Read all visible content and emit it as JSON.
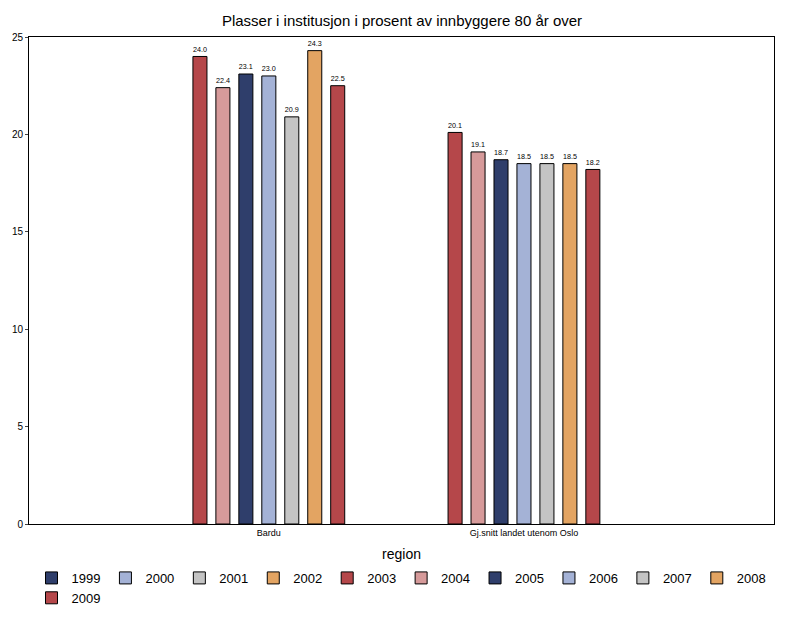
{
  "chart_data": {
    "type": "bar",
    "title": "Plasser i institusjon i prosent av innbyggere 80 år over",
    "x_label": "region",
    "categories": [
      "Bardu",
      "Gj.snitt landet utenom Oslo"
    ],
    "series": [
      {
        "name": "1999",
        "color": "#2f3e6b",
        "values": [
          null,
          null
        ],
        "value_labels": [
          null,
          null
        ]
      },
      {
        "name": "2000",
        "color": "#a4b2d6",
        "values": [
          null,
          null
        ],
        "value_labels": [
          null,
          null
        ]
      },
      {
        "name": "2001",
        "color": "#c4c4c4",
        "values": [
          null,
          null
        ],
        "value_labels": [
          null,
          null
        ]
      },
      {
        "name": "2002",
        "color": "#e3a462",
        "values": [
          null,
          null
        ],
        "value_labels": [
          null,
          null
        ]
      },
      {
        "name": "2003",
        "color": "#b5474a",
        "values": [
          24.0,
          20.1
        ],
        "value_labels": [
          "24.0",
          "20.1"
        ]
      },
      {
        "name": "2004",
        "color": "#d69a9a",
        "values": [
          22.4,
          19.1
        ],
        "value_labels": [
          "22.4",
          "19.1"
        ]
      },
      {
        "name": "2005",
        "color": "#2f3e6b",
        "values": [
          23.1,
          18.7
        ],
        "value_labels": [
          "23.1",
          "18.7"
        ]
      },
      {
        "name": "2006",
        "color": "#a4b2d6",
        "values": [
          23.0,
          18.5
        ],
        "value_labels": [
          "23.0",
          "18.5"
        ]
      },
      {
        "name": "2007",
        "color": "#c4c4c4",
        "values": [
          20.9,
          18.5
        ],
        "value_labels": [
          "20.9",
          "18.5"
        ]
      },
      {
        "name": "2008",
        "color": "#e3a462",
        "values": [
          24.3,
          18.5
        ],
        "value_labels": [
          "24.3",
          "18.5"
        ]
      },
      {
        "name": "2009",
        "color": "#b5474a",
        "values": [
          22.5,
          18.2
        ],
        "value_labels": [
          "22.5",
          "18.2"
        ]
      }
    ],
    "ylim": [
      0,
      25
    ],
    "yticks": [
      0,
      5,
      10,
      15,
      20,
      25
    ],
    "grid": false,
    "legend": "bottom",
    "data_labels": true
  }
}
